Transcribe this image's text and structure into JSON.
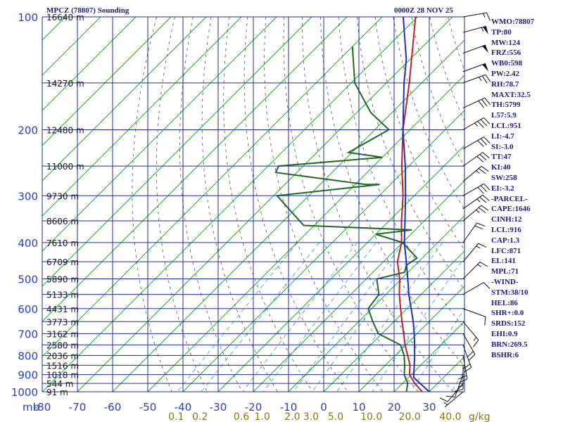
{
  "header": {
    "station_title": "MPCZ (78807) Sounding",
    "valid_time": "0000Z 28 NOV 25"
  },
  "indices": [
    "WMO:78807",
    "TP:80",
    "MW:124",
    "FRZ:556",
    "WB0:598",
    "PW:2.42",
    "RH:78.7",
    "MAXT:32.5",
    "TH:5799",
    "L57:5.9",
    "LCL:951",
    "LI:-4.7",
    "SI:-3.0",
    "TT:47",
    "KI:40",
    "SW:258",
    "EI:-3.2",
    "-PARCEL-",
    "CAPE:1646",
    "CINH:12",
    "LCL:916",
    "CAP:1.3",
    "LFC:871",
    "EL:141",
    "MPL:71",
    "-WIND-",
    "STM:38/10",
    "HEL:86",
    "SHR+:0.0",
    "SRDS:152",
    "EHI:0.9",
    "BRN:269.5",
    "BSHR:6"
  ],
  "colors": {
    "isobar_grid": "#1f2f9f",
    "isotherm": "#0e9a16",
    "dry_adiabat": "#555555",
    "mixing_ratio": "#2aa0c8",
    "temperature": "#c42020",
    "dewpoint": "#1f6b1f",
    "parcel": "#1f2fbf",
    "axis_label": "#2a3fc0",
    "mixing_label": "#8a7a00",
    "wind_barb": "#111111"
  },
  "chart_data": {
    "type": "skew-t",
    "pressure_axis": {
      "unit_label": "mb",
      "ticks": [
        100,
        200,
        300,
        400,
        500,
        600,
        700,
        800,
        900,
        1000
      ],
      "scale": "log",
      "range": [
        100,
        1000
      ]
    },
    "temperature_axis": {
      "ticks": [
        -80,
        -70,
        -60,
        -50,
        -40,
        -30,
        -20,
        -10,
        0,
        10,
        20,
        30
      ],
      "range": [
        -80,
        40
      ]
    },
    "mixing_ratio_labels": [
      "0.1",
      "0.2",
      "0.6",
      "1.0",
      "2.0",
      "3.0",
      "5.0",
      "10.0",
      "20.0",
      "40.0"
    ],
    "mixing_ratio_unit": "g/kg",
    "height_labels": [
      {
        "p": 100,
        "label": "16640 m"
      },
      {
        "p": 150,
        "label": "14270 m"
      },
      {
        "p": 200,
        "label": "12480 m"
      },
      {
        "p": 250,
        "label": "11000 m"
      },
      {
        "p": 300,
        "label": "9730 m"
      },
      {
        "p": 350,
        "label": "8606 m"
      },
      {
        "p": 400,
        "label": "7610 m"
      },
      {
        "p": 450,
        "label": "6709 m"
      },
      {
        "p": 500,
        "label": "5890 m"
      },
      {
        "p": 550,
        "label": "5133 m"
      },
      {
        "p": 600,
        "label": "4431 m"
      },
      {
        "p": 650,
        "label": "3773 m"
      },
      {
        "p": 700,
        "label": "3162 m"
      },
      {
        "p": 750,
        "label": "2580 m"
      },
      {
        "p": 800,
        "label": "2036 m"
      },
      {
        "p": 850,
        "label": "1516 m"
      },
      {
        "p": 900,
        "label": "1018 m"
      },
      {
        "p": 950,
        "label": "544 m"
      },
      {
        "p": 1000,
        "label": "91 m"
      }
    ],
    "series": [
      {
        "role": "temperature",
        "points": [
          {
            "p": 1010,
            "t": 29.3
          },
          {
            "p": 1000,
            "t": 28
          },
          {
            "p": 950,
            "t": 23.5
          },
          {
            "p": 900,
            "t": 19.5
          },
          {
            "p": 850,
            "t": 17
          },
          {
            "p": 800,
            "t": 13.5
          },
          {
            "p": 750,
            "t": 9.8
          },
          {
            "p": 700,
            "t": 6.2
          },
          {
            "p": 650,
            "t": 2.3
          },
          {
            "p": 600,
            "t": -1.8
          },
          {
            "p": 550,
            "t": -6.2
          },
          {
            "p": 500,
            "t": -10.5
          },
          {
            "p": 450,
            "t": -16
          },
          {
            "p": 400,
            "t": -20.3
          },
          {
            "p": 350,
            "t": -26.5
          },
          {
            "p": 300,
            "t": -33.2
          },
          {
            "p": 250,
            "t": -42
          },
          {
            "p": 200,
            "t": -52
          },
          {
            "p": 150,
            "t": -63.5
          },
          {
            "p": 100,
            "t": -80.5
          }
        ]
      },
      {
        "role": "dewpoint",
        "points": [
          {
            "p": 1000,
            "t": 23.5
          },
          {
            "p": 950,
            "t": 21.5
          },
          {
            "p": 900,
            "t": 18
          },
          {
            "p": 850,
            "t": 15.5
          },
          {
            "p": 800,
            "t": 12.5
          },
          {
            "p": 750,
            "t": 8.5
          },
          {
            "p": 700,
            "t": -1
          },
          {
            "p": 650,
            "t": -6
          },
          {
            "p": 600,
            "t": -11
          },
          {
            "p": 550,
            "t": -12
          },
          {
            "p": 500,
            "t": -17
          },
          {
            "p": 480,
            "t": -11
          },
          {
            "p": 460,
            "t": -12.5
          },
          {
            "p": 440,
            "t": -11.5
          },
          {
            "p": 400,
            "t": -20
          },
          {
            "p": 380,
            "t": -30
          },
          {
            "p": 370,
            "t": -21
          },
          {
            "p": 360,
            "t": -53
          },
          {
            "p": 300,
            "t": -69
          },
          {
            "p": 280,
            "t": -43
          },
          {
            "p": 280,
            "t": -47
          },
          {
            "p": 260,
            "t": -76
          },
          {
            "p": 250,
            "t": -77
          },
          {
            "p": 237,
            "t": -50
          },
          {
            "p": 230,
            "t": -61
          },
          {
            "p": 200,
            "t": -56
          },
          {
            "p": 180,
            "t": -66
          },
          {
            "p": 150,
            "t": -79
          },
          {
            "p": 120,
            "t": -90
          }
        ]
      },
      {
        "role": "parcel",
        "points": [
          {
            "p": 1000,
            "t": 30
          },
          {
            "p": 950,
            "t": 25
          },
          {
            "p": 916,
            "t": 21.5
          },
          {
            "p": 850,
            "t": 18.2
          },
          {
            "p": 800,
            "t": 15.5
          },
          {
            "p": 750,
            "t": 12.5
          },
          {
            "p": 700,
            "t": 9.2
          },
          {
            "p": 650,
            "t": 5.5
          },
          {
            "p": 600,
            "t": 1.2
          },
          {
            "p": 550,
            "t": -3.5
          },
          {
            "p": 500,
            "t": -8.2
          },
          {
            "p": 450,
            "t": -13.5
          },
          {
            "p": 400,
            "t": -19.5
          },
          {
            "p": 350,
            "t": -25.5
          },
          {
            "p": 300,
            "t": -32.5
          },
          {
            "p": 250,
            "t": -41
          },
          {
            "p": 200,
            "t": -52
          },
          {
            "p": 150,
            "t": -65
          },
          {
            "p": 130,
            "t": -71
          },
          {
            "p": 100,
            "t": -84
          }
        ]
      }
    ],
    "wind_barbs": [
      {
        "p": 100,
        "dir": 80,
        "kt": 15
      },
      {
        "p": 110,
        "dir": 75,
        "kt": 55
      },
      {
        "p": 125,
        "dir": 70,
        "kt": 50
      },
      {
        "p": 140,
        "dir": 70,
        "kt": 50
      },
      {
        "p": 150,
        "dir": 70,
        "kt": 25
      },
      {
        "p": 175,
        "dir": 65,
        "kt": 30
      },
      {
        "p": 200,
        "dir": 60,
        "kt": 35
      },
      {
        "p": 225,
        "dir": 60,
        "kt": 30
      },
      {
        "p": 250,
        "dir": 55,
        "kt": 30
      },
      {
        "p": 275,
        "dir": 50,
        "kt": 25
      },
      {
        "p": 300,
        "dir": 60,
        "kt": 30
      },
      {
        "p": 325,
        "dir": 55,
        "kt": 25
      },
      {
        "p": 350,
        "dir": 50,
        "kt": 25
      },
      {
        "p": 400,
        "dir": 35,
        "kt": 20
      },
      {
        "p": 450,
        "dir": 40,
        "kt": 15
      },
      {
        "p": 500,
        "dir": 45,
        "kt": 15
      },
      {
        "p": 550,
        "dir": 60,
        "kt": 10
      },
      {
        "p": 600,
        "dir": 110,
        "kt": 10
      },
      {
        "p": 650,
        "dir": 140,
        "kt": 15
      },
      {
        "p": 700,
        "dir": 150,
        "kt": 20
      },
      {
        "p": 750,
        "dir": 160,
        "kt": 20
      },
      {
        "p": 800,
        "dir": 170,
        "kt": 20
      },
      {
        "p": 850,
        "dir": 180,
        "kt": 15
      },
      {
        "p": 900,
        "dir": 200,
        "kt": 10
      },
      {
        "p": 950,
        "dir": 220,
        "kt": 10
      },
      {
        "p": 1000,
        "dir": 230,
        "kt": 5
      }
    ]
  }
}
